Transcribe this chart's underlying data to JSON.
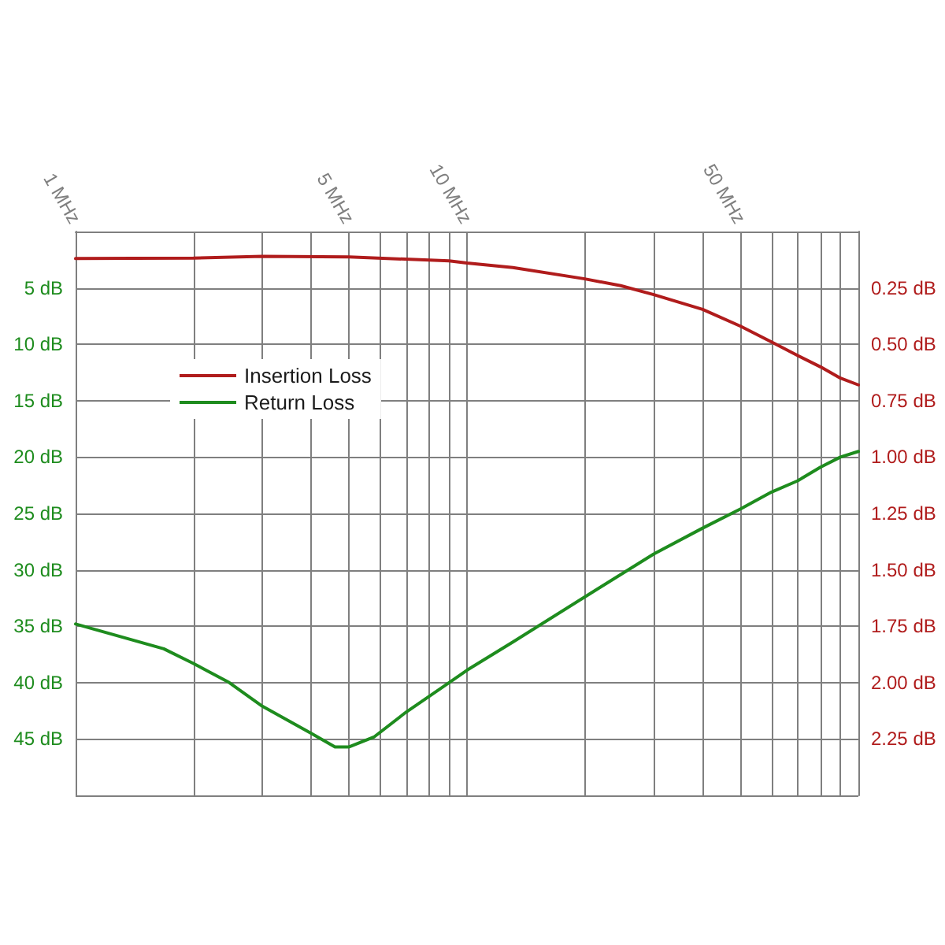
{
  "chart_data": {
    "type": "line",
    "log": "x",
    "grid": true,
    "legend": "top left",
    "marker": "none",
    "line_style": "solid",
    "xlim": [
      1,
      100
    ],
    "xticks": [
      {
        "value": 1,
        "label": "1 MHz"
      },
      {
        "value": 2,
        "label": null
      },
      {
        "value": 3,
        "label": null
      },
      {
        "value": 4,
        "label": null
      },
      {
        "value": 5,
        "label": "5 MHz"
      },
      {
        "value": 6,
        "label": null
      },
      {
        "value": 7,
        "label": null
      },
      {
        "value": 8,
        "label": null
      },
      {
        "value": 9,
        "label": null
      },
      {
        "value": 10,
        "label": "10 MHz"
      },
      {
        "value": 20,
        "label": null
      },
      {
        "value": 30,
        "label": null
      },
      {
        "value": 40,
        "label": null
      },
      {
        "value": 50,
        "label": "50 MHz"
      },
      {
        "value": 60,
        "label": null
      },
      {
        "value": 70,
        "label": null
      },
      {
        "value": 80,
        "label": null
      },
      {
        "value": 90,
        "label": null
      },
      {
        "value": 100,
        "label": null
      }
    ],
    "ylim": [
      50,
      0
    ],
    "yticks": [
      {
        "value": 0,
        "label": null
      },
      {
        "value": 5,
        "label": "5 dB"
      },
      {
        "value": 10,
        "label": "10 dB"
      },
      {
        "value": 15,
        "label": "15 dB"
      },
      {
        "value": 20,
        "label": "20 dB"
      },
      {
        "value": 25,
        "label": "25 dB"
      },
      {
        "value": 30,
        "label": "30 dB"
      },
      {
        "value": 35,
        "label": "35 dB"
      },
      {
        "value": 40,
        "label": "40 dB"
      },
      {
        "value": 45,
        "label": "45 dB"
      },
      {
        "value": 50,
        "label": null
      }
    ],
    "y2lim": [
      2.5,
      0
    ],
    "y2ticks": [
      {
        "value": 0.25,
        "label": "0.25 dB"
      },
      {
        "value": 0.5,
        "label": "0.50 dB"
      },
      {
        "value": 0.75,
        "label": "0.75 dB"
      },
      {
        "value": 1,
        "label": "1.00 dB"
      },
      {
        "value": 1.25,
        "label": "1.25 dB"
      },
      {
        "value": 1.5,
        "label": "1.50 dB"
      },
      {
        "value": 1.75,
        "label": "1.75 dB"
      },
      {
        "value": 2,
        "label": "2.00 dB"
      },
      {
        "value": 2.25,
        "label": "2.25 dB"
      }
    ],
    "series": [
      {
        "name": "Insertion Loss",
        "color": "#b01c1c",
        "axis": "y2",
        "x": [
          1,
          2,
          3,
          5,
          9,
          10,
          13.1,
          20,
          24.7,
          30,
          40,
          50,
          60,
          70,
          80,
          90,
          100
        ],
        "values": [
          0.12,
          0.118,
          0.11,
          0.113,
          0.13,
          0.14,
          0.16,
          0.21,
          0.24,
          0.28,
          0.345,
          0.42,
          0.49,
          0.55,
          0.6,
          0.65,
          0.68
        ]
      },
      {
        "name": "Return Loss",
        "color": "#1e8c1e",
        "x": [
          1,
          1.68,
          2,
          2.47,
          3,
          4,
          4.6,
          5,
          5.8,
          7,
          9,
          10,
          13.1,
          20,
          30,
          40,
          50,
          60,
          70,
          80,
          90,
          100
        ],
        "values": [
          34.8,
          37,
          38.3,
          40,
          42.1,
          44.5,
          45.7,
          45.7,
          44.8,
          42.6,
          40,
          38.9,
          36.4,
          32.4,
          28.6,
          26.3,
          24.6,
          23.1,
          22.1,
          20.9,
          20,
          19.5
        ]
      }
    ]
  }
}
